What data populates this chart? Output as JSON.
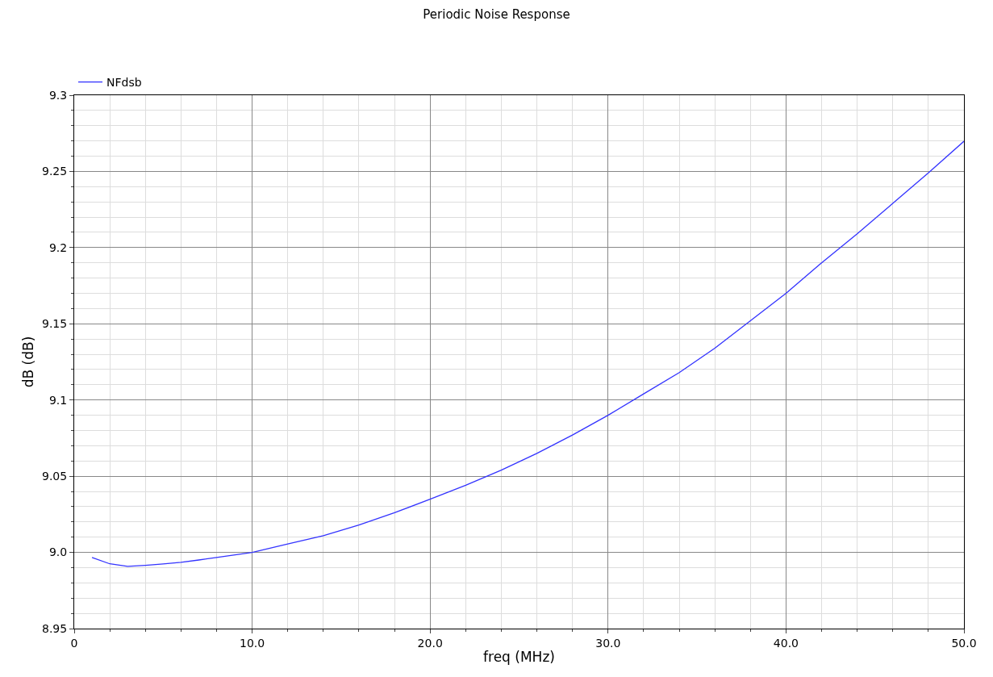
{
  "chart_data": {
    "type": "line",
    "title": "Periodic Noise Response",
    "xlabel": "freq (MHz)",
    "ylabel": "dB (dB)",
    "x": [
      1,
      2,
      3,
      4,
      5,
      6,
      7,
      8,
      10,
      12,
      14,
      16,
      18,
      20,
      22,
      24,
      26,
      28,
      30,
      32,
      34,
      36,
      38,
      40,
      42,
      44,
      46,
      48,
      50
    ],
    "series": [
      {
        "name": "NFdsb",
        "color": "#3333ff",
        "values": [
          8.9967,
          8.9925,
          8.9908,
          8.9915,
          8.9924,
          8.9935,
          8.995,
          8.9967,
          9.0,
          9.0055,
          9.011,
          9.018,
          9.026,
          9.0349,
          9.044,
          9.054,
          9.065,
          9.077,
          9.09,
          9.104,
          9.118,
          9.134,
          9.152,
          9.17,
          9.19,
          9.209,
          9.229,
          9.249,
          9.2698
        ]
      }
    ],
    "xlim": [
      0,
      50
    ],
    "xticks": [
      0,
      {
        "value": 10,
        "label": "10.0"
      },
      {
        "value": 20,
        "label": "20.0"
      },
      {
        "value": 30,
        "label": "30.0"
      },
      {
        "value": 40,
        "label": "40.0"
      },
      {
        "value": 50,
        "label": "50.0"
      }
    ],
    "ylim": [
      8.95,
      9.3
    ],
    "yticks": [
      8.95,
      {
        "value": 9.0,
        "label": "9.0"
      },
      9.05,
      9.1,
      9.15,
      9.2,
      9.25,
      9.3
    ],
    "grid": true,
    "legend": "top left",
    "marker": "none",
    "line_style": "solid"
  }
}
